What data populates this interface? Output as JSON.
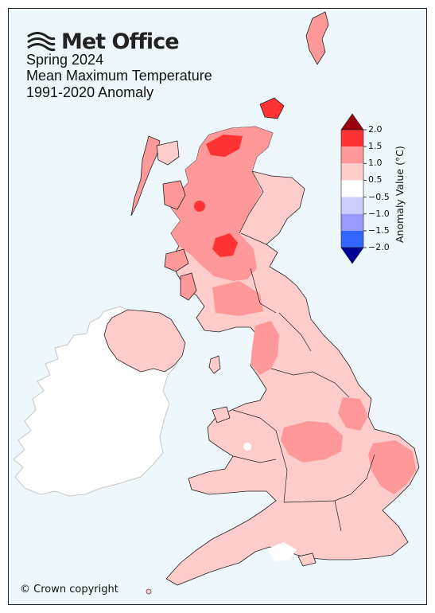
{
  "brand": {
    "name": "Met Office",
    "logo_icon": "met-office-waves-icon"
  },
  "title": {
    "line1": "Spring 2024",
    "line2": "Mean Maximum Temperature",
    "line3": "1991-2020 Anomaly"
  },
  "colorbar": {
    "label": "Anomaly Value (°C)",
    "ticks": [
      "2.0",
      "1.5",
      "1.0",
      "0.5",
      "−0.5",
      "−1.0",
      "−1.5",
      "−2.0"
    ],
    "bins": [
      {
        "range": "> 2.0",
        "color": "#99000d"
      },
      {
        "range": "1.5 to 2.0",
        "color": "#ff3333"
      },
      {
        "range": "1.0 to 1.5",
        "color": "#ff9999"
      },
      {
        "range": "0.5 to 1.0",
        "color": "#ffcccc"
      },
      {
        "range": "-0.5 to 0.5",
        "color": "#ffffff"
      },
      {
        "range": "-1.0 to -0.5",
        "color": "#ccccff"
      },
      {
        "range": "-1.5 to -1.0",
        "color": "#9999ff"
      },
      {
        "range": "-2.0 to -1.5",
        "color": "#3366ff"
      },
      {
        "range": "< -2.0",
        "color": "#000099"
      }
    ]
  },
  "copyright": "© Crown copyright"
}
